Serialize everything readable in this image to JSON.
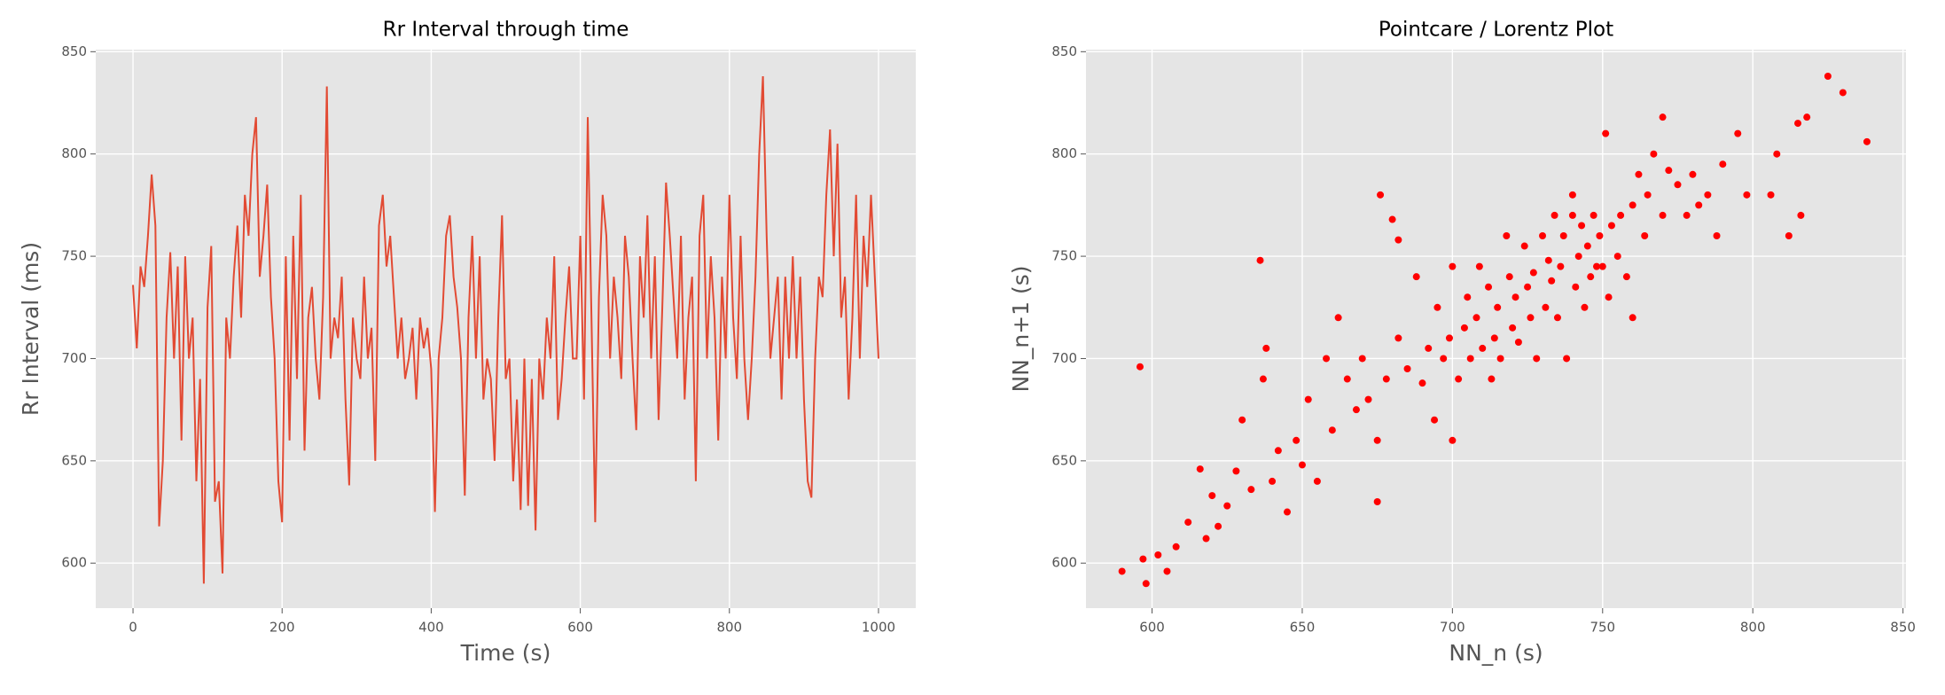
{
  "chart_data": [
    {
      "type": "line",
      "title": "Rr Interval through time",
      "xlabel": "Time (s)",
      "ylabel": "Rr Interval (ms)",
      "color": "#e24a33",
      "grid": true,
      "xlim": [
        -50,
        1050
      ],
      "ylim": [
        578,
        851
      ],
      "xticks": [
        0,
        200,
        400,
        600,
        800,
        1000
      ],
      "yticks": [
        600,
        650,
        700,
        750,
        800,
        850
      ],
      "x": [
        0,
        5,
        10,
        15,
        20,
        25,
        30,
        35,
        40,
        45,
        50,
        55,
        60,
        65,
        70,
        75,
        80,
        85,
        90,
        95,
        100,
        105,
        110,
        115,
        120,
        125,
        130,
        135,
        140,
        145,
        150,
        155,
        160,
        165,
        170,
        175,
        180,
        185,
        190,
        195,
        200,
        205,
        210,
        215,
        220,
        225,
        230,
        235,
        240,
        245,
        250,
        255,
        260,
        265,
        270,
        275,
        280,
        285,
        290,
        295,
        300,
        305,
        310,
        315,
        320,
        325,
        330,
        335,
        340,
        345,
        350,
        355,
        360,
        365,
        370,
        375,
        380,
        385,
        390,
        395,
        400,
        405,
        410,
        415,
        420,
        425,
        430,
        435,
        440,
        445,
        450,
        455,
        460,
        465,
        470,
        475,
        480,
        485,
        490,
        495,
        500,
        505,
        510,
        515,
        520,
        525,
        530,
        535,
        540,
        545,
        550,
        555,
        560,
        565,
        570,
        575,
        580,
        585,
        590,
        595,
        600,
        605,
        610,
        615,
        620,
        625,
        630,
        635,
        640,
        645,
        650,
        655,
        660,
        665,
        670,
        675,
        680,
        685,
        690,
        695,
        700,
        705,
        710,
        715,
        720,
        725,
        730,
        735,
        740,
        745,
        750,
        755,
        760,
        765,
        770,
        775,
        780,
        785,
        790,
        795,
        800,
        805,
        810,
        815,
        820,
        825,
        830,
        835,
        840,
        845,
        850,
        855,
        860,
        865,
        870,
        875,
        880,
        885,
        890,
        895,
        900,
        905,
        910,
        915,
        920,
        925,
        930,
        935,
        940,
        945,
        950,
        955,
        960,
        965,
        970,
        975,
        980,
        985,
        990,
        995,
        1000
      ],
      "values": [
        736,
        705,
        745,
        735,
        760,
        790,
        765,
        618,
        650,
        720,
        752,
        700,
        745,
        660,
        750,
        700,
        720,
        640,
        690,
        590,
        725,
        755,
        630,
        640,
        595,
        720,
        700,
        740,
        765,
        720,
        780,
        760,
        800,
        818,
        740,
        760,
        785,
        730,
        700,
        640,
        620,
        750,
        660,
        760,
        690,
        780,
        655,
        720,
        735,
        700,
        680,
        730,
        833,
        700,
        720,
        710,
        740,
        680,
        638,
        720,
        700,
        690,
        740,
        700,
        715,
        650,
        765,
        780,
        745,
        760,
        730,
        700,
        720,
        690,
        700,
        715,
        680,
        720,
        705,
        715,
        695,
        625,
        700,
        720,
        760,
        770,
        740,
        725,
        700,
        633,
        720,
        760,
        700,
        750,
        680,
        700,
        690,
        650,
        720,
        770,
        690,
        700,
        640,
        680,
        626,
        700,
        628,
        690,
        616,
        700,
        680,
        720,
        700,
        750,
        670,
        690,
        720,
        745,
        700,
        700,
        760,
        680,
        818,
        720,
        620,
        730,
        780,
        760,
        700,
        740,
        720,
        690,
        760,
        740,
        700,
        665,
        750,
        720,
        770,
        700,
        750,
        670,
        725,
        786,
        760,
        730,
        700,
        760,
        680,
        720,
        740,
        640,
        760,
        780,
        700,
        750,
        720,
        660,
        740,
        700,
        780,
        720,
        690,
        760,
        700,
        670,
        700,
        740,
        800,
        838,
        760,
        700,
        720,
        740,
        680,
        740,
        700,
        750,
        700,
        740,
        680,
        640,
        632,
        700,
        740,
        730,
        780,
        812,
        750,
        805,
        720,
        740,
        680,
        720,
        780,
        700,
        760,
        735,
        780,
        740,
        700
      ]
    },
    {
      "type": "scatter",
      "title": "Pointcare / Lorentz Plot",
      "xlabel": "NN_n (s)",
      "ylabel": "NN_n+1 (s)",
      "color": "#ff0000",
      "grid": true,
      "xlim": [
        578,
        851
      ],
      "ylim": [
        578,
        851
      ],
      "xticks": [
        600,
        650,
        700,
        750,
        800,
        850
      ],
      "yticks": [
        600,
        650,
        700,
        750,
        800,
        850
      ],
      "x": [
        590,
        596,
        598,
        602,
        605,
        608,
        612,
        616,
        620,
        622,
        625,
        628,
        630,
        633,
        636,
        638,
        640,
        642,
        645,
        648,
        650,
        652,
        655,
        658,
        660,
        662,
        665,
        668,
        670,
        672,
        675,
        676,
        678,
        680,
        682,
        685,
        688,
        690,
        692,
        694,
        695,
        697,
        699,
        700,
        702,
        704,
        705,
        706,
        708,
        709,
        710,
        712,
        713,
        714,
        715,
        716,
        718,
        719,
        720,
        721,
        722,
        724,
        725,
        726,
        727,
        728,
        730,
        731,
        732,
        733,
        734,
        735,
        736,
        737,
        738,
        740,
        741,
        742,
        743,
        744,
        745,
        746,
        747,
        748,
        749,
        750,
        751,
        752,
        753,
        755,
        756,
        758,
        760,
        762,
        764,
        765,
        767,
        770,
        772,
        775,
        778,
        780,
        782,
        785,
        788,
        790,
        795,
        798,
        806,
        808,
        812,
        815,
        816,
        818,
        825,
        830,
        838,
        597,
        637,
        675,
        682,
        618,
        700,
        740,
        760,
        770
      ],
      "values": [
        596,
        696,
        590,
        604,
        596,
        608,
        620,
        646,
        633,
        618,
        628,
        645,
        670,
        636,
        748,
        705,
        640,
        655,
        625,
        660,
        648,
        680,
        640,
        700,
        665,
        720,
        690,
        675,
        700,
        680,
        660,
        780,
        690,
        768,
        710,
        695,
        740,
        688,
        705,
        670,
        725,
        700,
        710,
        745,
        690,
        715,
        730,
        700,
        720,
        745,
        705,
        735,
        690,
        710,
        725,
        700,
        760,
        740,
        715,
        730,
        708,
        755,
        735,
        720,
        742,
        700,
        760,
        725,
        748,
        738,
        770,
        720,
        745,
        760,
        700,
        780,
        735,
        750,
        765,
        725,
        755,
        740,
        770,
        745,
        760,
        745,
        810,
        730,
        765,
        750,
        770,
        740,
        775,
        790,
        760,
        780,
        800,
        770,
        792,
        785,
        770,
        790,
        775,
        780,
        760,
        795,
        810,
        780,
        780,
        800,
        760,
        815,
        770,
        818,
        838,
        830,
        806,
        602,
        690,
        630,
        758,
        612,
        660,
        770,
        720,
        818
      ]
    }
  ]
}
